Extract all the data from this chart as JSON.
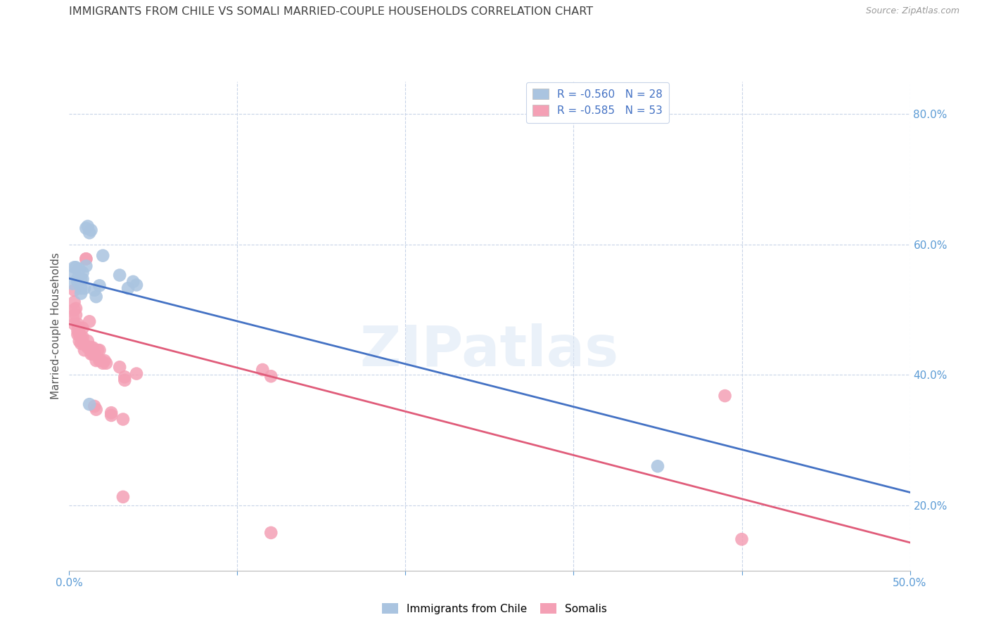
{
  "title": "IMMIGRANTS FROM CHILE VS SOMALI MARRIED-COUPLE HOUSEHOLDS CORRELATION CHART",
  "source": "Source: ZipAtlas.com",
  "ylabel": "Married-couple Households",
  "xlim": [
    0.0,
    0.5
  ],
  "ylim": [
    0.1,
    0.85
  ],
  "yticks": [
    0.2,
    0.4,
    0.6,
    0.8
  ],
  "ytick_labels": [
    "20.0%",
    "40.0%",
    "60.0%",
    "80.0%"
  ],
  "xticks": [
    0.0,
    0.1,
    0.2,
    0.3,
    0.4,
    0.5
  ],
  "xtick_labels": [
    "0.0%",
    "",
    "",
    "",
    "",
    "50.0%"
  ],
  "watermark": "ZIPatlas",
  "legend_entries": [
    {
      "label": "R = -0.560   N = 28"
    },
    {
      "label": "R = -0.585   N = 53"
    }
  ],
  "blue_scatter": [
    [
      0.002,
      0.54
    ],
    [
      0.003,
      0.565
    ],
    [
      0.003,
      0.555
    ],
    [
      0.004,
      0.565
    ],
    [
      0.005,
      0.548
    ],
    [
      0.005,
      0.543
    ],
    [
      0.006,
      0.562
    ],
    [
      0.007,
      0.525
    ],
    [
      0.007,
      0.547
    ],
    [
      0.007,
      0.533
    ],
    [
      0.008,
      0.547
    ],
    [
      0.008,
      0.557
    ],
    [
      0.009,
      0.533
    ],
    [
      0.01,
      0.567
    ],
    [
      0.01,
      0.625
    ],
    [
      0.011,
      0.628
    ],
    [
      0.012,
      0.618
    ],
    [
      0.013,
      0.622
    ],
    [
      0.015,
      0.53
    ],
    [
      0.016,
      0.52
    ],
    [
      0.018,
      0.537
    ],
    [
      0.02,
      0.583
    ],
    [
      0.03,
      0.553
    ],
    [
      0.035,
      0.533
    ],
    [
      0.038,
      0.543
    ],
    [
      0.04,
      0.538
    ],
    [
      0.012,
      0.355
    ],
    [
      0.35,
      0.26
    ]
  ],
  "pink_scatter": [
    [
      0.002,
      0.49
    ],
    [
      0.003,
      0.478
    ],
    [
      0.003,
      0.53
    ],
    [
      0.003,
      0.5
    ],
    [
      0.003,
      0.512
    ],
    [
      0.004,
      0.502
    ],
    [
      0.004,
      0.492
    ],
    [
      0.005,
      0.478
    ],
    [
      0.005,
      0.462
    ],
    [
      0.005,
      0.468
    ],
    [
      0.006,
      0.462
    ],
    [
      0.006,
      0.472
    ],
    [
      0.006,
      0.452
    ],
    [
      0.007,
      0.448
    ],
    [
      0.007,
      0.458
    ],
    [
      0.008,
      0.472
    ],
    [
      0.008,
      0.458
    ],
    [
      0.009,
      0.447
    ],
    [
      0.009,
      0.438
    ],
    [
      0.01,
      0.578
    ],
    [
      0.01,
      0.578
    ],
    [
      0.011,
      0.452
    ],
    [
      0.011,
      0.442
    ],
    [
      0.012,
      0.482
    ],
    [
      0.013,
      0.442
    ],
    [
      0.013,
      0.432
    ],
    [
      0.014,
      0.442
    ],
    [
      0.014,
      0.437
    ],
    [
      0.014,
      0.432
    ],
    [
      0.015,
      0.432
    ],
    [
      0.016,
      0.422
    ],
    [
      0.017,
      0.438
    ],
    [
      0.018,
      0.438
    ],
    [
      0.018,
      0.422
    ],
    [
      0.019,
      0.422
    ],
    [
      0.02,
      0.418
    ],
    [
      0.021,
      0.422
    ],
    [
      0.022,
      0.418
    ],
    [
      0.015,
      0.352
    ],
    [
      0.016,
      0.347
    ],
    [
      0.025,
      0.342
    ],
    [
      0.025,
      0.338
    ],
    [
      0.03,
      0.412
    ],
    [
      0.033,
      0.392
    ],
    [
      0.033,
      0.397
    ],
    [
      0.04,
      0.402
    ],
    [
      0.115,
      0.408
    ],
    [
      0.12,
      0.398
    ],
    [
      0.032,
      0.213
    ],
    [
      0.39,
      0.368
    ],
    [
      0.4,
      0.148
    ],
    [
      0.12,
      0.158
    ],
    [
      0.032,
      0.332
    ]
  ],
  "blue_line": [
    [
      0.0,
      0.548
    ],
    [
      0.5,
      0.22
    ]
  ],
  "pink_line": [
    [
      0.0,
      0.478
    ],
    [
      0.5,
      0.143
    ]
  ],
  "blue_line_color": "#4472c4",
  "pink_line_color": "#e05c7a",
  "scatter_blue_color": "#aac4e0",
  "scatter_pink_color": "#f4a0b5",
  "grid_color": "#c8d4e8",
  "title_color": "#404040",
  "tick_color": "#5b9bd5",
  "background_color": "#ffffff"
}
